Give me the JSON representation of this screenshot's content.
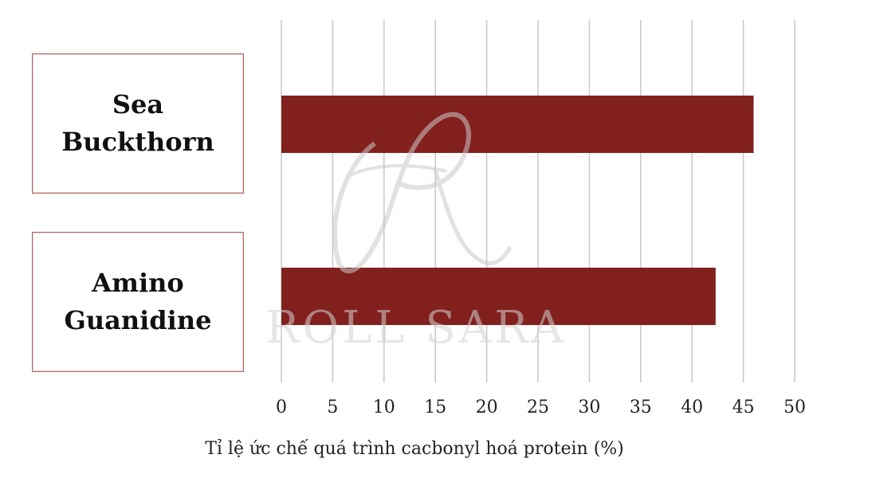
{
  "chart_data": {
    "type": "bar",
    "orientation": "horizontal",
    "categories": [
      "Sea Buckthorn",
      "Amino Guanidine"
    ],
    "values": [
      46,
      42.3
    ],
    "xlabel": "Tỉ lệ ức chế quá trình cacbonyl hoá protein (%)",
    "ylabel": "",
    "xlim": [
      0,
      50
    ],
    "ticks": [
      0,
      5,
      10,
      15,
      20,
      25,
      30,
      35,
      40,
      45,
      50
    ],
    "grid": true,
    "bar_color": "#82201e",
    "grid_color": "#c8c8c8"
  },
  "watermark": {
    "text": "ROLL SARA"
  }
}
